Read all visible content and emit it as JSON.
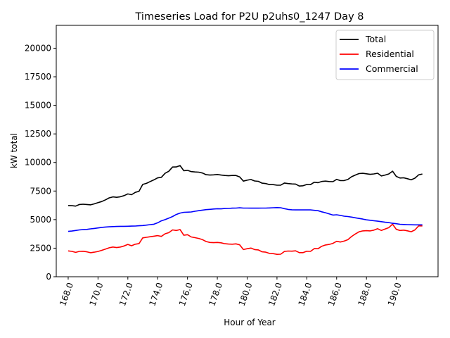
{
  "chart_data": {
    "type": "line",
    "title": "Timeseries Load for P2U p2uhs0_1247  Day 8",
    "xlabel": "Hour of Year",
    "ylabel": "kW total",
    "xlim": [
      167.2,
      192.8
    ],
    "ylim": [
      0,
      22000
    ],
    "x_ticks": [
      168.0,
      170.0,
      172.0,
      174.0,
      176.0,
      178.0,
      180.0,
      182.0,
      184.0,
      186.0,
      188.0,
      190.0
    ],
    "x_tick_labels": [
      "168.0",
      "170.0",
      "172.0",
      "174.0",
      "176.0",
      "178.0",
      "180.0",
      "182.0",
      "184.0",
      "186.0",
      "188.0",
      "190.0"
    ],
    "y_ticks": [
      0,
      2500,
      5000,
      7500,
      10000,
      12500,
      15000,
      17500,
      20000
    ],
    "y_tick_labels": [
      "0",
      "2500",
      "5000",
      "7500",
      "10000",
      "12500",
      "15000",
      "17500",
      "20000"
    ],
    "legend": {
      "position": "top-right"
    },
    "x": [
      168.0,
      168.25,
      168.5,
      168.75,
      169.0,
      169.25,
      169.5,
      169.75,
      170.0,
      170.25,
      170.5,
      170.75,
      171.0,
      171.25,
      171.5,
      171.75,
      172.0,
      172.25,
      172.5,
      172.75,
      173.0,
      173.25,
      173.5,
      173.75,
      174.0,
      174.25,
      174.5,
      174.75,
      175.0,
      175.25,
      175.5,
      175.75,
      176.0,
      176.25,
      176.5,
      176.75,
      177.0,
      177.25,
      177.5,
      177.75,
      178.0,
      178.25,
      178.5,
      178.75,
      179.0,
      179.25,
      179.5,
      179.75,
      180.0,
      180.25,
      180.5,
      180.75,
      181.0,
      181.25,
      181.5,
      181.75,
      182.0,
      182.25,
      182.5,
      182.75,
      183.0,
      183.25,
      183.5,
      183.75,
      184.0,
      184.25,
      184.5,
      184.75,
      185.0,
      185.25,
      185.5,
      185.75,
      186.0,
      186.25,
      186.5,
      186.75,
      187.0,
      187.25,
      187.5,
      187.75,
      188.0,
      188.25,
      188.5,
      188.75,
      189.0,
      189.25,
      189.5,
      189.75,
      190.0,
      190.25,
      190.5,
      190.75,
      191.0,
      191.25,
      191.5,
      191.75
    ],
    "series": [
      {
        "name": "Total",
        "color": "#000000",
        "values": [
          6230,
          6220,
          6180,
          6320,
          6350,
          6320,
          6290,
          6380,
          6480,
          6580,
          6730,
          6900,
          6990,
          6950,
          7000,
          7100,
          7250,
          7180,
          7380,
          7480,
          8080,
          8170,
          8330,
          8480,
          8650,
          8700,
          9050,
          9230,
          9600,
          9610,
          9730,
          9280,
          9310,
          9200,
          9170,
          9150,
          9080,
          8930,
          8900,
          8920,
          8950,
          8900,
          8860,
          8840,
          8860,
          8860,
          8730,
          8370,
          8450,
          8510,
          8380,
          8350,
          8190,
          8150,
          8060,
          8060,
          8010,
          8020,
          8200,
          8150,
          8120,
          8110,
          7940,
          7960,
          8070,
          8060,
          8270,
          8230,
          8340,
          8370,
          8330,
          8320,
          8520,
          8410,
          8420,
          8510,
          8750,
          8900,
          9030,
          9050,
          9010,
          8960,
          9000,
          9060,
          8820,
          8900,
          9000,
          9240,
          8780,
          8640,
          8660,
          8580,
          8480,
          8630,
          8920,
          8990
        ]
      },
      {
        "name": "Residential",
        "color": "#ff0000",
        "values": [
          2260,
          2220,
          2130,
          2220,
          2230,
          2180,
          2100,
          2150,
          2210,
          2310,
          2420,
          2530,
          2600,
          2550,
          2600,
          2690,
          2830,
          2710,
          2850,
          2900,
          3400,
          3450,
          3500,
          3550,
          3600,
          3530,
          3760,
          3860,
          4100,
          4050,
          4130,
          3630,
          3680,
          3480,
          3420,
          3350,
          3250,
          3080,
          3000,
          2980,
          3000,
          2970,
          2890,
          2860,
          2850,
          2880,
          2790,
          2380,
          2450,
          2510,
          2380,
          2350,
          2180,
          2150,
          2040,
          2020,
          1960,
          1970,
          2210,
          2250,
          2240,
          2270,
          2110,
          2110,
          2230,
          2220,
          2460,
          2450,
          2670,
          2780,
          2830,
          2920,
          3100,
          3040,
          3120,
          3240,
          3520,
          3740,
          3930,
          4010,
          4030,
          4010,
          4080,
          4200,
          4050,
          4180,
          4300,
          4600,
          4150,
          4050,
          4080,
          4020,
          3940,
          4100,
          4450,
          4450
        ]
      },
      {
        "name": "Commercial",
        "color": "#0000ff",
        "values": [
          3970,
          4000,
          4050,
          4100,
          4120,
          4140,
          4190,
          4230,
          4270,
          4320,
          4350,
          4370,
          4390,
          4400,
          4410,
          4410,
          4420,
          4430,
          4440,
          4460,
          4480,
          4520,
          4560,
          4600,
          4720,
          4890,
          5000,
          5130,
          5270,
          5450,
          5570,
          5640,
          5650,
          5670,
          5730,
          5780,
          5830,
          5870,
          5900,
          5930,
          5950,
          5940,
          5970,
          5980,
          6000,
          6010,
          6030,
          6010,
          6010,
          6000,
          6000,
          6000,
          6010,
          6010,
          6020,
          6040,
          6050,
          6040,
          5960,
          5890,
          5860,
          5850,
          5850,
          5850,
          5850,
          5850,
          5810,
          5780,
          5680,
          5600,
          5500,
          5400,
          5420,
          5370,
          5300,
          5270,
          5220,
          5160,
          5100,
          5050,
          4980,
          4940,
          4900,
          4860,
          4820,
          4770,
          4740,
          4680,
          4640,
          4590,
          4570,
          4560,
          4550,
          4540,
          4540,
          4540
        ]
      }
    ]
  }
}
